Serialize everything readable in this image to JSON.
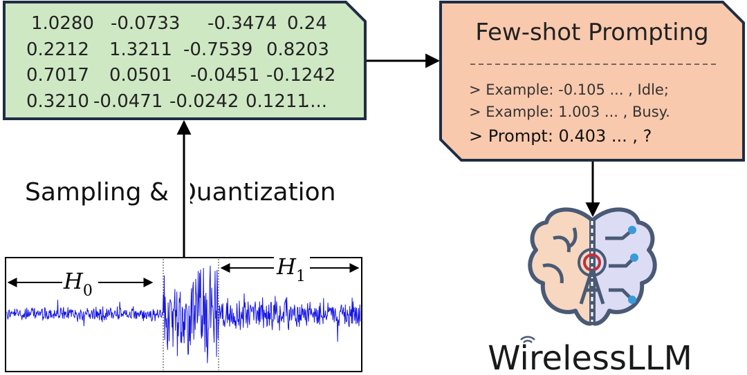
{
  "matrix": {
    "rows": [
      [
        "1.0280",
        "-0.0733",
        "-0.3474",
        "0.24"
      ],
      [
        "0.2212",
        "1.3211",
        "-0.7539",
        "0.8203"
      ],
      [
        "0.7017",
        "0.0501",
        "-0.0451",
        "-0.1242"
      ],
      [
        "0.3210",
        "-0.0471",
        "-0.0242",
        "0.1211",
        "...."
      ]
    ]
  },
  "step_label": "Sampling & Quantization",
  "prompting": {
    "title": "Few-shot Prompting",
    "lines": [
      "> Example: -0.105 ... ,  Idle;",
      "> Example: 1.003 ... ,  Busy.",
      "> Prompt: 0.403 ... ,  ?"
    ]
  },
  "waveform": {
    "h0": {
      "symbol": "H",
      "subscript": "0"
    },
    "h1": {
      "symbol": "H",
      "subscript": "1"
    }
  },
  "logo": "WirelessLLM"
}
